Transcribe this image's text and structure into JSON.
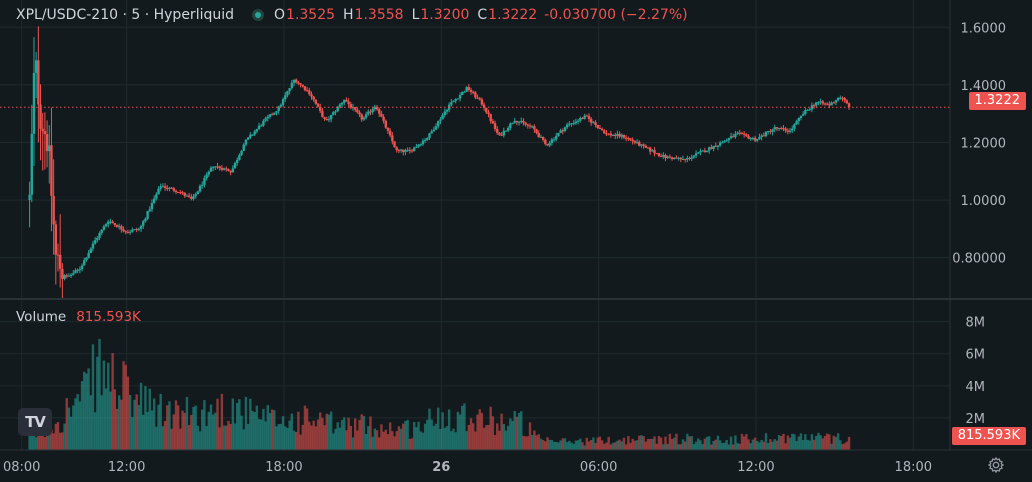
{
  "header": {
    "symbol": "XPL/USDC-210 · 5 · Hyperliquid",
    "o_label": "O",
    "o_value": "1.3525",
    "h_label": "H",
    "h_value": "1.3558",
    "l_label": "L",
    "l_value": "1.3200",
    "c_label": "C",
    "c_value": "1.3222",
    "change": "-0.030700 (−2.27%)"
  },
  "volume_header": {
    "label": "Volume",
    "value": "815.593K"
  },
  "last_price_tag": "1.3222",
  "last_volume_tag": "815.593K",
  "logo_text": "TV",
  "colors": {
    "up": "#26a69a",
    "down": "#ef5350",
    "background": "#121a1d",
    "grid": "#1f2a2e"
  },
  "chart_data": [
    {
      "type": "candlestick",
      "title": "XPL/USDC-210 · 5 · Hyperliquid",
      "y_tick_labels": [
        "1.6000",
        "1.4000",
        "1.2000",
        "1.0000",
        "0.80000"
      ],
      "y_ticks": [
        1.6,
        1.4,
        1.2,
        1.0,
        0.8
      ],
      "ylim": [
        0.66,
        1.66
      ],
      "x_tick_labels": [
        "08:00",
        "12:00",
        "18:00",
        "26",
        "06:00",
        "12:00",
        "18:00"
      ],
      "x_ticks_hours": [
        8,
        12,
        18,
        24,
        30,
        36,
        42
      ],
      "xlim_hours": [
        7.4,
        43.4
      ],
      "last_close": 1.3222,
      "price_path": [
        {
          "t": 8.3,
          "p": 1.0
        },
        {
          "t": 8.5,
          "p": 1.5
        },
        {
          "t": 8.7,
          "p": 1.3
        },
        {
          "t": 9.0,
          "p": 1.2
        },
        {
          "t": 9.3,
          "p": 0.8
        },
        {
          "t": 9.7,
          "p": 0.73
        },
        {
          "t": 10.2,
          "p": 0.76
        },
        {
          "t": 10.8,
          "p": 0.86
        },
        {
          "t": 11.3,
          "p": 0.93
        },
        {
          "t": 12.0,
          "p": 0.89
        },
        {
          "t": 12.5,
          "p": 0.9
        },
        {
          "t": 13.3,
          "p": 1.05
        },
        {
          "t": 14.0,
          "p": 1.03
        },
        {
          "t": 14.5,
          "p": 1.0
        },
        {
          "t": 15.3,
          "p": 1.12
        },
        {
          "t": 16.0,
          "p": 1.1
        },
        {
          "t": 16.5,
          "p": 1.2
        },
        {
          "t": 17.2,
          "p": 1.27
        },
        {
          "t": 17.8,
          "p": 1.32
        },
        {
          "t": 18.4,
          "p": 1.42
        },
        {
          "t": 19.0,
          "p": 1.37
        },
        {
          "t": 19.6,
          "p": 1.27
        },
        {
          "t": 20.3,
          "p": 1.35
        },
        {
          "t": 21.0,
          "p": 1.28
        },
        {
          "t": 21.5,
          "p": 1.33
        },
        {
          "t": 22.3,
          "p": 1.17
        },
        {
          "t": 22.8,
          "p": 1.17
        },
        {
          "t": 23.5,
          "p": 1.22
        },
        {
          "t": 24.3,
          "p": 1.33
        },
        {
          "t": 25.0,
          "p": 1.39
        },
        {
          "t": 25.6,
          "p": 1.33
        },
        {
          "t": 26.2,
          "p": 1.22
        },
        {
          "t": 26.8,
          "p": 1.28
        },
        {
          "t": 27.5,
          "p": 1.25
        },
        {
          "t": 28.0,
          "p": 1.19
        },
        {
          "t": 28.8,
          "p": 1.26
        },
        {
          "t": 29.5,
          "p": 1.29
        },
        {
          "t": 30.3,
          "p": 1.23
        },
        {
          "t": 31.0,
          "p": 1.22
        },
        {
          "t": 31.8,
          "p": 1.18
        },
        {
          "t": 32.5,
          "p": 1.15
        },
        {
          "t": 33.3,
          "p": 1.14
        },
        {
          "t": 34.0,
          "p": 1.17
        },
        {
          "t": 34.7,
          "p": 1.2
        },
        {
          "t": 35.3,
          "p": 1.23
        },
        {
          "t": 36.0,
          "p": 1.21
        },
        {
          "t": 36.7,
          "p": 1.25
        },
        {
          "t": 37.3,
          "p": 1.24
        },
        {
          "t": 37.8,
          "p": 1.3
        },
        {
          "t": 38.3,
          "p": 1.34
        },
        {
          "t": 38.8,
          "p": 1.33
        },
        {
          "t": 39.2,
          "p": 1.36
        },
        {
          "t": 39.6,
          "p": 1.3222
        }
      ],
      "candle_interval_minutes": 5
    },
    {
      "type": "bar",
      "title": "Volume",
      "y_tick_labels": [
        "8M",
        "6M",
        "4M",
        "2M"
      ],
      "y_ticks": [
        8,
        6,
        4,
        2
      ],
      "ylim": [
        0,
        8.6
      ],
      "unit": "M",
      "last_value": 0.815593,
      "volume_path": [
        {
          "t": 8.8,
          "v": 1.2
        },
        {
          "t": 9.6,
          "v": 2.5
        },
        {
          "t": 10.3,
          "v": 3.5
        },
        {
          "t": 10.9,
          "v": 5.5
        },
        {
          "t": 11.5,
          "v": 4.8
        },
        {
          "t": 12.2,
          "v": 3.6
        },
        {
          "t": 13.0,
          "v": 2.8
        },
        {
          "t": 14.0,
          "v": 2.4
        },
        {
          "t": 15.0,
          "v": 2.6
        },
        {
          "t": 16.0,
          "v": 3.0
        },
        {
          "t": 17.0,
          "v": 2.2
        },
        {
          "t": 18.0,
          "v": 2.0
        },
        {
          "t": 19.0,
          "v": 2.1
        },
        {
          "t": 20.0,
          "v": 1.7
        },
        {
          "t": 21.0,
          "v": 1.7
        },
        {
          "t": 22.0,
          "v": 1.5
        },
        {
          "t": 23.0,
          "v": 1.5
        },
        {
          "t": 24.0,
          "v": 2.4
        },
        {
          "t": 25.0,
          "v": 2.5
        },
        {
          "t": 26.0,
          "v": 2.0
        },
        {
          "t": 27.0,
          "v": 2.0
        },
        {
          "t": 27.8,
          "v": 0.6
        },
        {
          "t": 29.0,
          "v": 0.6
        },
        {
          "t": 31.0,
          "v": 0.7
        },
        {
          "t": 33.0,
          "v": 0.8
        },
        {
          "t": 35.0,
          "v": 0.7
        },
        {
          "t": 37.0,
          "v": 0.9
        },
        {
          "t": 39.6,
          "v": 0.8
        }
      ]
    }
  ]
}
